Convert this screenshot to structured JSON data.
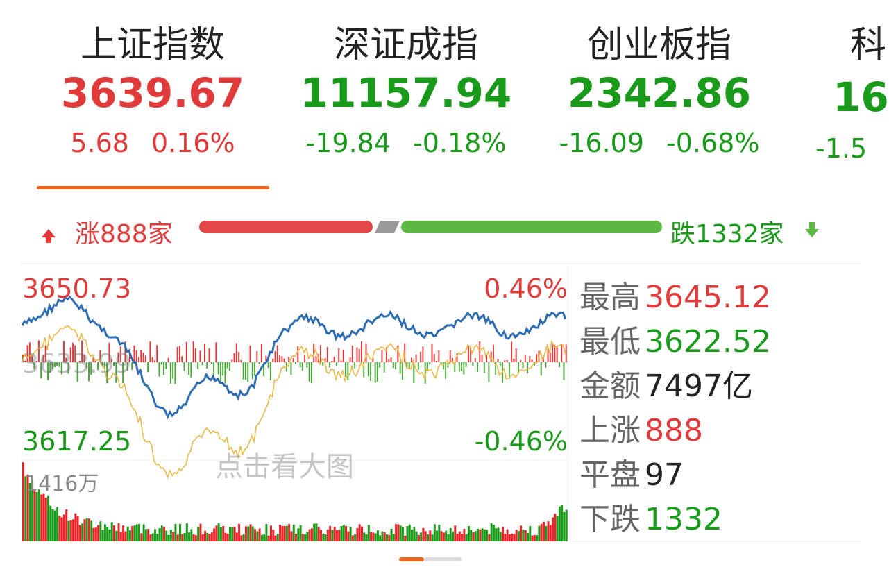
{
  "indices": [
    {
      "name": "上证指数",
      "value": "3639.67",
      "change": "5.68",
      "pct": "0.16%"
    },
    {
      "name": "深证成指",
      "value": "11157.94",
      "change": "-19.84",
      "pct": "-0.18%"
    },
    {
      "name": "创业板指",
      "value": "2342.86",
      "change": "-16.09",
      "pct": "-0.68%"
    },
    {
      "name": "科",
      "value": "16",
      "change": "-1.5"
    }
  ],
  "breadth": {
    "up": "涨888家",
    "down": "跌1332家"
  },
  "chart": {
    "high_price": "3650.73",
    "high_pct": "0.46%",
    "low_price": "3617.25",
    "low_pct": "-0.46%",
    "prev_close": "3633.99",
    "hint": "点击看大图",
    "volume_max": "1416万"
  },
  "stats": [
    {
      "label": "最高",
      "value": "3645.12"
    },
    {
      "label": "最低",
      "value": "3622.52"
    },
    {
      "label": "金额",
      "value": "7497亿"
    },
    {
      "label": "上涨",
      "value": "888"
    },
    {
      "label": "平盘",
      "value": "97"
    },
    {
      "label": "下跌",
      "value": "1332"
    }
  ]
}
